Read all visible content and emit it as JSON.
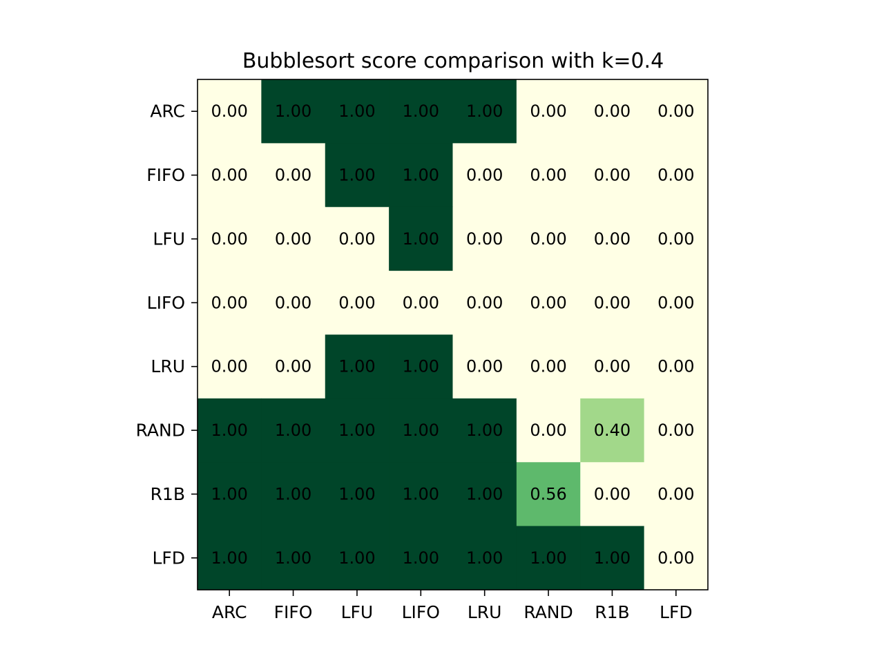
{
  "chart_data": {
    "type": "heatmap",
    "title": "Bubblesort score comparison with k=0.4",
    "xlabel": "",
    "ylabel": "",
    "x_categories": [
      "ARC",
      "FIFO",
      "LFU",
      "LIFO",
      "LRU",
      "RAND",
      "R1B",
      "LFD"
    ],
    "y_categories": [
      "ARC",
      "FIFO",
      "LFU",
      "LIFO",
      "LRU",
      "RAND",
      "R1B",
      "LFD"
    ],
    "values": [
      [
        0.0,
        1.0,
        1.0,
        1.0,
        1.0,
        0.0,
        0.0,
        0.0
      ],
      [
        0.0,
        0.0,
        1.0,
        1.0,
        0.0,
        0.0,
        0.0,
        0.0
      ],
      [
        0.0,
        0.0,
        0.0,
        1.0,
        0.0,
        0.0,
        0.0,
        0.0
      ],
      [
        0.0,
        0.0,
        0.0,
        0.0,
        0.0,
        0.0,
        0.0,
        0.0
      ],
      [
        0.0,
        0.0,
        1.0,
        1.0,
        0.0,
        0.0,
        0.0,
        0.0
      ],
      [
        1.0,
        1.0,
        1.0,
        1.0,
        1.0,
        0.0,
        0.4,
        0.0
      ],
      [
        1.0,
        1.0,
        1.0,
        1.0,
        1.0,
        0.56,
        0.0,
        0.0
      ],
      [
        1.0,
        1.0,
        1.0,
        1.0,
        1.0,
        1.0,
        1.0,
        0.0
      ]
    ],
    "value_format": "2 decimals",
    "colormap": "YlGn",
    "vmin": 0,
    "vmax": 1,
    "colors": {
      "low": "#ffffe5",
      "mid_low": "#a1d99b",
      "mid_high": "#5cb86b",
      "high": "#004529"
    },
    "grid": false,
    "legend": "none"
  }
}
